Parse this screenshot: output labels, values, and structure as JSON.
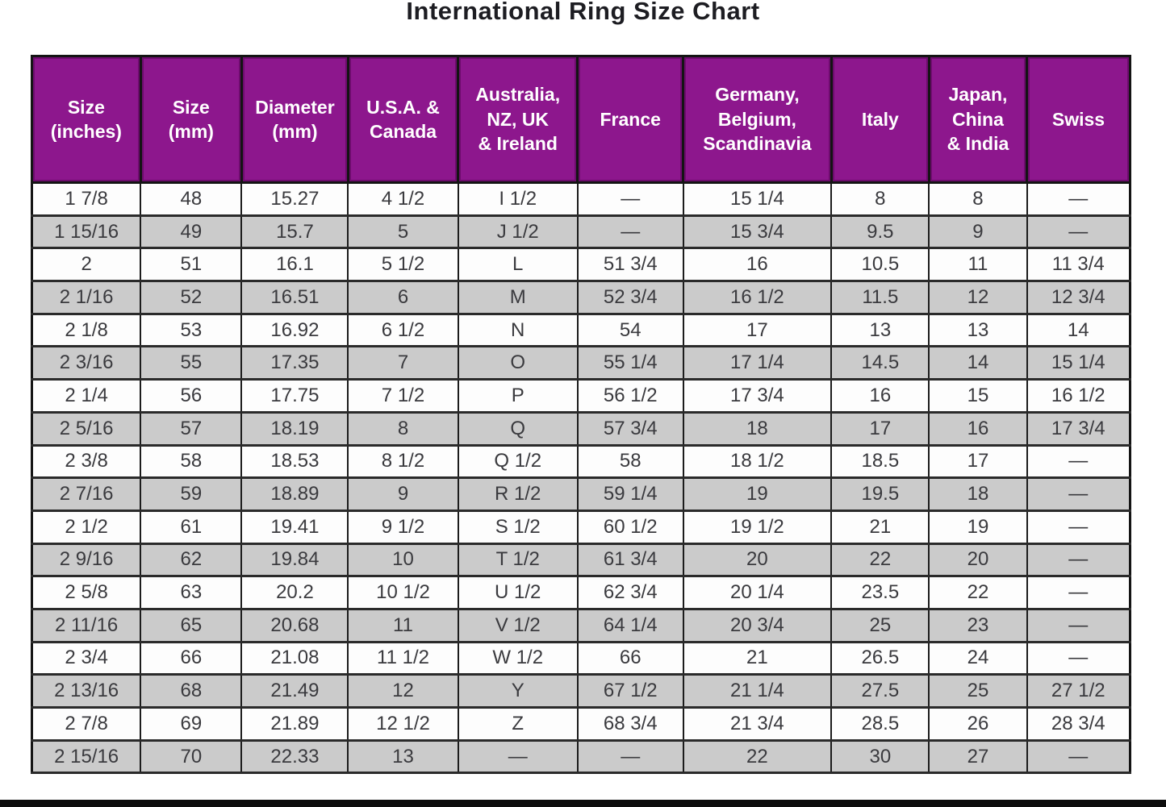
{
  "title": "International Ring Size Chart",
  "colors": {
    "header_bg": "#8d178d",
    "header_text": "#ffffff",
    "row_white": "#fdfdfd",
    "row_gray": "#cbcbcb",
    "border": "#1c1c1c",
    "bottom_bar": "#0d0d0d",
    "cell_text": "#3a3a3e"
  },
  "chart_data": {
    "type": "table",
    "title": "International Ring Size Chart",
    "columns": [
      "Size\n(inches)",
      "Size\n(mm)",
      "Diameter\n(mm)",
      "U.S.A. &\nCanada",
      "Australia,\nNZ, UK\n& Ireland",
      "France",
      "Germany,\nBelgium,\nScandinavia",
      "Italy",
      "Japan,\nChina\n& India",
      "Swiss"
    ],
    "rows": [
      [
        "1 7/8",
        "48",
        "15.27",
        "4 1/2",
        "I 1/2",
        "—",
        "15 1/4",
        "8",
        "8",
        "—"
      ],
      [
        "1 15/16",
        "49",
        "15.7",
        "5",
        "J 1/2",
        "—",
        "15 3/4",
        "9.5",
        "9",
        "—"
      ],
      [
        "2",
        "51",
        "16.1",
        "5 1/2",
        "L",
        "51 3/4",
        "16",
        "10.5",
        "11",
        "11 3/4"
      ],
      [
        "2 1/16",
        "52",
        "16.51",
        "6",
        "M",
        "52 3/4",
        "16 1/2",
        "11.5",
        "12",
        "12 3/4"
      ],
      [
        "2 1/8",
        "53",
        "16.92",
        "6 1/2",
        "N",
        "54",
        "17",
        "13",
        "13",
        "14"
      ],
      [
        "2 3/16",
        "55",
        "17.35",
        "7",
        "O",
        "55 1/4",
        "17 1/4",
        "14.5",
        "14",
        "15 1/4"
      ],
      [
        "2 1/4",
        "56",
        "17.75",
        "7 1/2",
        "P",
        "56 1/2",
        "17 3/4",
        "16",
        "15",
        "16 1/2"
      ],
      [
        "2 5/16",
        "57",
        "18.19",
        "8",
        "Q",
        "57 3/4",
        "18",
        "17",
        "16",
        "17 3/4"
      ],
      [
        "2 3/8",
        "58",
        "18.53",
        "8 1/2",
        "Q 1/2",
        "58",
        "18 1/2",
        "18.5",
        "17",
        "—"
      ],
      [
        "2 7/16",
        "59",
        "18.89",
        "9",
        "R 1/2",
        "59 1/4",
        "19",
        "19.5",
        "18",
        "—"
      ],
      [
        "2 1/2",
        "61",
        "19.41",
        "9 1/2",
        "S 1/2",
        "60 1/2",
        "19 1/2",
        "21",
        "19",
        "—"
      ],
      [
        "2 9/16",
        "62",
        "19.84",
        "10",
        "T 1/2",
        "61 3/4",
        "20",
        "22",
        "20",
        "—"
      ],
      [
        "2 5/8",
        "63",
        "20.2",
        "10 1/2",
        "U 1/2",
        "62 3/4",
        "20 1/4",
        "23.5",
        "22",
        "—"
      ],
      [
        "2 11/16",
        "65",
        "20.68",
        "11",
        "V 1/2",
        "64 1/4",
        "20 3/4",
        "25",
        "23",
        "—"
      ],
      [
        "2 3/4",
        "66",
        "21.08",
        "11 1/2",
        "W 1/2",
        "66",
        "21",
        "26.5",
        "24",
        "—"
      ],
      [
        "2 13/16",
        "68",
        "21.49",
        "12",
        "Y",
        "67 1/2",
        "21 1/4",
        "27.5",
        "25",
        "27 1/2"
      ],
      [
        "2 7/8",
        "69",
        "21.89",
        "12 1/2",
        "Z",
        "68 3/4",
        "21 3/4",
        "28.5",
        "26",
        "28 3/4"
      ],
      [
        "2 15/16",
        "70",
        "22.33",
        "13",
        "—",
        "—",
        "22",
        "30",
        "27",
        "—"
      ]
    ]
  }
}
